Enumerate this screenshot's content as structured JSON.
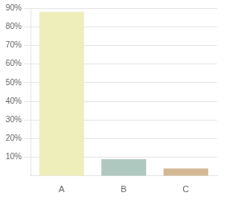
{
  "chart_data": {
    "type": "bar",
    "categories": [
      "A",
      "B",
      "C"
    ],
    "values": [
      0.88,
      0.09,
      0.04
    ],
    "colors": [
      "#eeeebb",
      "#aec8c0",
      "#d4b896"
    ],
    "ylim": [
      0,
      0.9
    ],
    "yticks": [
      {
        "value": 0.1,
        "label": "10%"
      },
      {
        "value": 0.2,
        "label": "20%"
      },
      {
        "value": 0.3,
        "label": "30%"
      },
      {
        "value": 0.4,
        "label": "40%"
      },
      {
        "value": 0.5,
        "label": "50%"
      },
      {
        "value": 0.6,
        "label": "60%"
      },
      {
        "value": 0.7,
        "label": "70%"
      },
      {
        "value": 0.8,
        "label": "80%"
      },
      {
        "value": 0.9,
        "label": "90%"
      }
    ],
    "grid": true
  }
}
